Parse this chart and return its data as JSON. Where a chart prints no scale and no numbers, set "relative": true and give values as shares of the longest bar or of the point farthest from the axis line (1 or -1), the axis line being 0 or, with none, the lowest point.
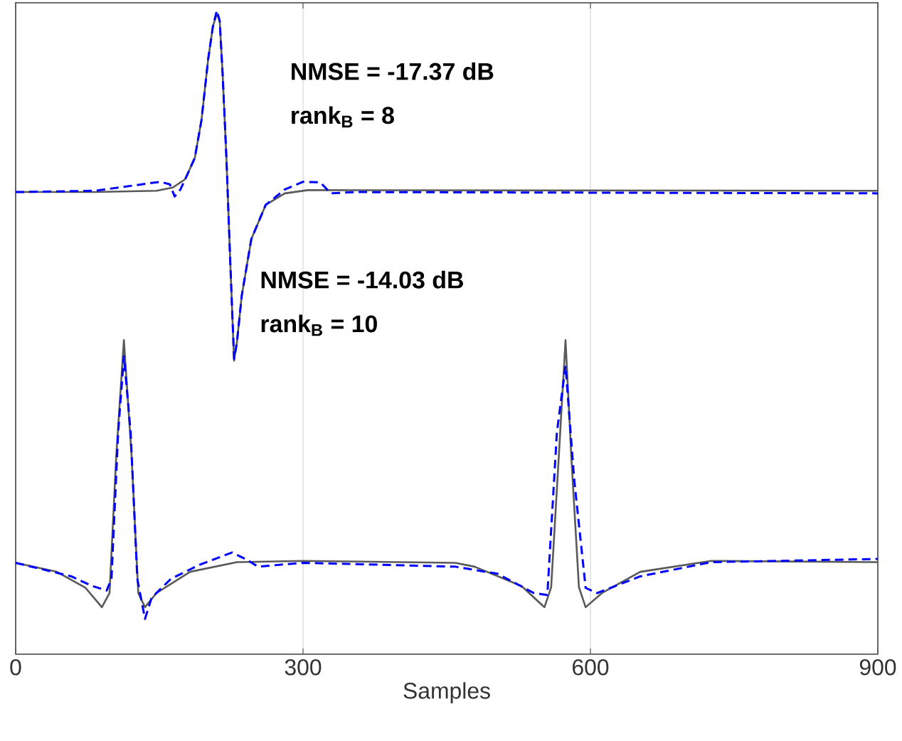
{
  "chart_data": {
    "type": "line",
    "relative": true,
    "xlabel": "Samples",
    "xlim": [
      0,
      900
    ],
    "xticks": [
      0,
      300,
      600,
      900
    ],
    "grid": "x",
    "annotations": [
      "NMSE = -17.37 dB",
      "rank$_{B}$ = 8",
      "NMSE = -14.03 dB",
      "rank$_{B}$ = 10"
    ],
    "series": [
      {
        "color": "#595959",
        "line_style": "solid",
        "x": [
          0,
          83,
          147,
          164,
          177,
          187,
          194,
          201,
          206,
          210,
          213,
          216,
          220,
          224,
          228,
          231,
          236,
          246,
          261,
          281,
          305,
          900
        ],
        "values": [
          0.718,
          0.718,
          0.72,
          0.725,
          0.738,
          0.771,
          0.83,
          0.925,
          0.976,
          0.995,
          0.984,
          0.903,
          0.771,
          0.61,
          0.456,
          0.485,
          0.557,
          0.645,
          0.698,
          0.716,
          0.721,
          0.72
        ]
      },
      {
        "color": "#0000ff",
        "line_style": "dashed",
        "x": [
          0,
          83,
          151,
          161,
          166,
          172,
          177,
          187,
          194,
          201,
          206,
          210,
          213,
          216,
          220,
          224,
          228,
          231,
          236,
          246,
          261,
          281,
          300,
          318,
          329,
          355,
          900
        ],
        "values": [
          0.718,
          0.72,
          0.734,
          0.73,
          0.711,
          0.722,
          0.738,
          0.771,
          0.83,
          0.925,
          0.976,
          1.0,
          0.984,
          0.903,
          0.771,
          0.61,
          0.459,
          0.485,
          0.557,
          0.645,
          0.698,
          0.722,
          0.734,
          0.733,
          0.716,
          0.718,
          0.716
        ]
      },
      {
        "color": "#595959",
        "line_style": "solid",
        "x": [
          0,
          43,
          73,
          90,
          98,
          105,
          113,
          121,
          128,
          135,
          147,
          182,
          231,
          300,
          459,
          479,
          528,
          552,
          559,
          567,
          574,
          580,
          588,
          595,
          612,
          652,
          726,
          900
        ],
        "values": [
          0.142,
          0.128,
          0.103,
          0.073,
          0.095,
          0.308,
          0.488,
          0.308,
          0.095,
          0.073,
          0.095,
          0.128,
          0.143,
          0.145,
          0.142,
          0.136,
          0.106,
          0.073,
          0.104,
          0.308,
          0.488,
          0.308,
          0.104,
          0.073,
          0.095,
          0.128,
          0.145,
          0.143
        ]
      },
      {
        "color": "#0000ff",
        "line_style": "dashed",
        "x": [
          0,
          58,
          80,
          95,
          100,
          107,
          113,
          120,
          127,
          135,
          142,
          162,
          192,
          226,
          241,
          253,
          300,
          459,
          503,
          541,
          555,
          565,
          574,
          583,
          595,
          607,
          652,
          726,
          900
        ],
        "values": [
          0.142,
          0.121,
          0.106,
          0.099,
          0.117,
          0.345,
          0.463,
          0.345,
          0.117,
          0.055,
          0.088,
          0.117,
          0.139,
          0.158,
          0.147,
          0.136,
          0.142,
          0.136,
          0.125,
          0.095,
          0.092,
          0.345,
          0.448,
          0.272,
          0.103,
          0.095,
          0.121,
          0.143,
          0.148
        ]
      }
    ]
  }
}
